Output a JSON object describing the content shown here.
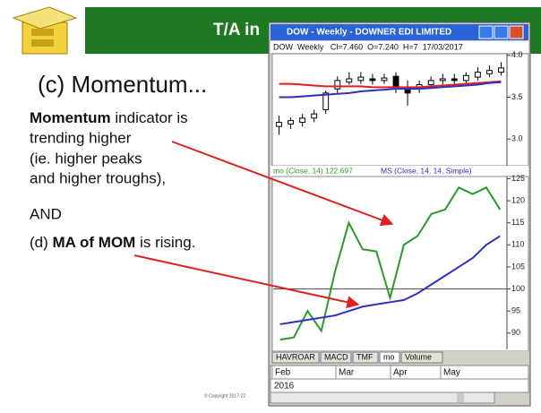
{
  "slide": {
    "title": "T/A in",
    "heading": "(c) Momentum...",
    "point1": {
      "bold": "Momentum",
      "rest": " indicator is",
      "lines": [
        "trending higher",
        "(ie. higher peaks",
        "and higher troughs),"
      ]
    },
    "and": "AND",
    "point2": {
      "start": "(d) ",
      "bold": "MA of MOM",
      "rest": " is rising."
    },
    "copyright": "© Copyright 2017-22"
  },
  "window": {
    "title": "DOW - Weekly - DOWNER EDI LIMITED",
    "info": "DOW  Weekly   Cl=7.460  O=7.240  H=7  17/03/2017",
    "tabs": [
      "HAVROAR",
      "MACD",
      "TMF",
      "mo",
      "Volume"
    ],
    "months": [
      "Feb",
      "Mar",
      "Apr",
      "May"
    ],
    "year": "2016"
  },
  "chart_data": [
    {
      "type": "candlestick",
      "open": [
        3.15,
        3.18,
        3.2,
        3.25,
        3.35,
        3.6,
        3.68,
        3.7,
        3.72,
        3.7,
        3.75,
        3.62,
        3.6,
        3.65,
        3.7,
        3.72,
        3.7,
        3.74,
        3.78,
        3.8
      ],
      "high": [
        3.28,
        3.26,
        3.3,
        3.35,
        3.58,
        3.75,
        3.8,
        3.8,
        3.78,
        3.78,
        3.8,
        3.7,
        3.7,
        3.75,
        3.78,
        3.78,
        3.8,
        3.86,
        3.88,
        3.92
      ],
      "low": [
        3.05,
        3.12,
        3.15,
        3.2,
        3.3,
        3.55,
        3.65,
        3.66,
        3.65,
        3.66,
        3.55,
        3.4,
        3.55,
        3.6,
        3.65,
        3.66,
        3.66,
        3.7,
        3.74,
        3.76
      ],
      "close": [
        3.2,
        3.22,
        3.25,
        3.3,
        3.55,
        3.7,
        3.72,
        3.74,
        3.7,
        3.73,
        3.62,
        3.55,
        3.65,
        3.7,
        3.72,
        3.7,
        3.76,
        3.8,
        3.82,
        3.85
      ],
      "series": [
        {
          "color": "#e02020",
          "values": [
            3.66,
            3.66,
            3.65,
            3.64,
            3.63,
            3.63,
            3.63,
            3.63,
            3.62,
            3.62,
            3.62,
            3.62,
            3.62,
            3.63,
            3.64,
            3.65,
            3.66,
            3.67,
            3.68,
            3.69
          ]
        },
        {
          "color": "#3030c0",
          "values": [
            3.5,
            3.5,
            3.51,
            3.52,
            3.53,
            3.54,
            3.55,
            3.57,
            3.58,
            3.59,
            3.6,
            3.6,
            3.6,
            3.61,
            3.62,
            3.63,
            3.64,
            3.65,
            3.67,
            3.68
          ]
        }
      ],
      "ylim": [
        2.68,
        4.02
      ],
      "yticks": [
        {
          "value": 3,
          "label": "3.0"
        },
        3.5,
        {
          "value": 4,
          "label": "4.0"
        }
      ]
    },
    {
      "type": "line",
      "series": [
        {
          "name": "mo (Close, 14) 122.697",
          "color": "#2a9a2a",
          "values": [
            88.5,
            89,
            95,
            90.5,
            104,
            115,
            109,
            108.5,
            98,
            110,
            112,
            117,
            118,
            123,
            121.5,
            123,
            118
          ]
        },
        {
          "name": "MS (Close, 14, 14, Simple)",
          "color": "#3030c0",
          "values": [
            92,
            92.5,
            93,
            93.5,
            94,
            95,
            96,
            96.5,
            97,
            97.5,
            99,
            101,
            103,
            105,
            107,
            110,
            112
          ]
        }
      ],
      "hline": 100,
      "ylim": [
        86.3,
        125.5
      ],
      "yticks": [
        90,
        95,
        100,
        105,
        110,
        115,
        120,
        125
      ]
    }
  ]
}
